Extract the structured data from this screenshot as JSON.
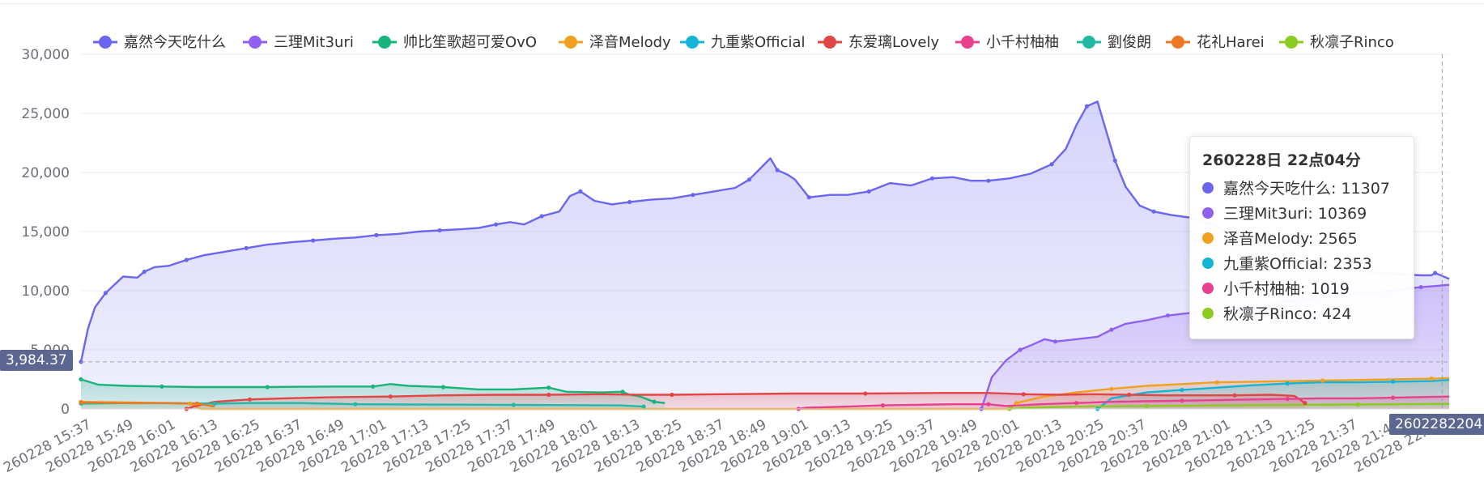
{
  "chart_data": {
    "type": "area",
    "title": "",
    "xlabel": "",
    "ylabel": "",
    "ylim": [
      0,
      30000
    ],
    "y_ticks": [
      "30,000",
      "25,000",
      "20,000",
      "15,000",
      "10,000",
      "5,000",
      "0"
    ],
    "y_tick_values": [
      30000,
      25000,
      20000,
      15000,
      10000,
      5000,
      0
    ],
    "x_ticks": [
      "260228 15:37",
      "260228 15:49",
      "260228 16:01",
      "260228 16:13",
      "260228 16:25",
      "260228 16:37",
      "260228 16:49",
      "260228 17:01",
      "260228 17:13",
      "260228 17:25",
      "260228 17:37",
      "260228 17:49",
      "260228 18:01",
      "260228 18:13",
      "260228 18:25",
      "260228 18:37",
      "260228 18:49",
      "260228 19:01",
      "260228 19:13",
      "260228 19:25",
      "260228 19:37",
      "260228 19:49",
      "260228 20:01",
      "260228 20:13",
      "260228 20:25",
      "260228 20:37",
      "260228 20:49",
      "260228 21:01",
      "260228 21:13",
      "260228 21:25",
      "260228 21:37",
      "260228 21:49",
      "260228 22:01"
    ],
    "x_tick_minutes": [
      937,
      949,
      961,
      973,
      985,
      997,
      1009,
      1021,
      1033,
      1045,
      1057,
      1069,
      1081,
      1093,
      1105,
      1117,
      1129,
      1141,
      1153,
      1165,
      1177,
      1189,
      1201,
      1213,
      1225,
      1237,
      1249,
      1261,
      1273,
      1285,
      1297,
      1309,
      1321
    ],
    "x_range_minutes": [
      937,
      1326
    ],
    "legend_position": "top",
    "grid": true,
    "series": [
      {
        "name": "嘉然今天吃什么",
        "color": "#6b66f0",
        "area": true,
        "points": [
          [
            937,
            3984
          ],
          [
            939,
            6800
          ],
          [
            941,
            8600
          ],
          [
            944,
            9800
          ],
          [
            949,
            11200
          ],
          [
            953,
            11100
          ],
          [
            955,
            11600
          ],
          [
            958,
            12000
          ],
          [
            962,
            12100
          ],
          [
            967,
            12600
          ],
          [
            972,
            13000
          ],
          [
            978,
            13300
          ],
          [
            984,
            13600
          ],
          [
            990,
            13900
          ],
          [
            997,
            14100
          ],
          [
            1003,
            14250
          ],
          [
            1009,
            14400
          ],
          [
            1015,
            14500
          ],
          [
            1021,
            14700
          ],
          [
            1027,
            14800
          ],
          [
            1033,
            15000
          ],
          [
            1039,
            15100
          ],
          [
            1045,
            15200
          ],
          [
            1050,
            15300
          ],
          [
            1055,
            15600
          ],
          [
            1059,
            15800
          ],
          [
            1063,
            15600
          ],
          [
            1068,
            16300
          ],
          [
            1073,
            16700
          ],
          [
            1076,
            18000
          ],
          [
            1079,
            18400
          ],
          [
            1083,
            17600
          ],
          [
            1088,
            17300
          ],
          [
            1093,
            17500
          ],
          [
            1099,
            17700
          ],
          [
            1105,
            17800
          ],
          [
            1111,
            18100
          ],
          [
            1117,
            18400
          ],
          [
            1123,
            18700
          ],
          [
            1127,
            19400
          ],
          [
            1130,
            20300
          ],
          [
            1133,
            21200
          ],
          [
            1135,
            20200
          ],
          [
            1138,
            19800
          ],
          [
            1140,
            19400
          ],
          [
            1144,
            17900
          ],
          [
            1150,
            18100
          ],
          [
            1155,
            18100
          ],
          [
            1161,
            18400
          ],
          [
            1167,
            19100
          ],
          [
            1173,
            18900
          ],
          [
            1179,
            19500
          ],
          [
            1185,
            19600
          ],
          [
            1190,
            19300
          ],
          [
            1195,
            19300
          ],
          [
            1201,
            19500
          ],
          [
            1207,
            19900
          ],
          [
            1213,
            20700
          ],
          [
            1217,
            22000
          ],
          [
            1220,
            24000
          ],
          [
            1223,
            25600
          ],
          [
            1226,
            26000
          ],
          [
            1228,
            24000
          ],
          [
            1231,
            21000
          ],
          [
            1234,
            18800
          ],
          [
            1238,
            17200
          ],
          [
            1242,
            16700
          ],
          [
            1247,
            16400
          ],
          [
            1252,
            16200
          ],
          [
            1258,
            15700
          ],
          [
            1264,
            14800
          ],
          [
            1270,
            14300
          ],
          [
            1276,
            13800
          ],
          [
            1282,
            13100
          ],
          [
            1288,
            12400
          ],
          [
            1294,
            12000
          ],
          [
            1300,
            11700
          ],
          [
            1306,
            11500
          ],
          [
            1312,
            11400
          ],
          [
            1318,
            11300
          ],
          [
            1321,
            11307
          ],
          [
            1322,
            11500
          ],
          [
            1326,
            11000
          ]
        ]
      },
      {
        "name": "三理Mit3uri",
        "color": "#9061f0",
        "area": true,
        "points": [
          [
            1193,
            0
          ],
          [
            1196,
            2700
          ],
          [
            1200,
            4100
          ],
          [
            1204,
            5000
          ],
          [
            1208,
            5500
          ],
          [
            1211,
            5900
          ],
          [
            1214,
            5700
          ],
          [
            1220,
            5900
          ],
          [
            1226,
            6100
          ],
          [
            1230,
            6700
          ],
          [
            1234,
            7200
          ],
          [
            1240,
            7500
          ],
          [
            1246,
            7900
          ],
          [
            1252,
            8100
          ],
          [
            1258,
            8300
          ],
          [
            1264,
            8500
          ],
          [
            1270,
            8700
          ],
          [
            1276,
            8900
          ],
          [
            1282,
            9200
          ],
          [
            1288,
            9400
          ],
          [
            1294,
            9600
          ],
          [
            1300,
            9800
          ],
          [
            1306,
            9900
          ],
          [
            1312,
            10100
          ],
          [
            1318,
            10300
          ],
          [
            1321,
            10369
          ],
          [
            1326,
            10500
          ]
        ]
      },
      {
        "name": "帅比笙歌超可爱OvO",
        "color": "#19b47a",
        "area": true,
        "points": [
          [
            937,
            2500
          ],
          [
            942,
            2050
          ],
          [
            950,
            1950
          ],
          [
            960,
            1900
          ],
          [
            970,
            1850
          ],
          [
            980,
            1850
          ],
          [
            990,
            1850
          ],
          [
            1000,
            1880
          ],
          [
            1010,
            1900
          ],
          [
            1020,
            1900
          ],
          [
            1025,
            2100
          ],
          [
            1030,
            1950
          ],
          [
            1040,
            1850
          ],
          [
            1050,
            1650
          ],
          [
            1060,
            1650
          ],
          [
            1070,
            1800
          ],
          [
            1075,
            1450
          ],
          [
            1085,
            1400
          ],
          [
            1091,
            1450
          ],
          [
            1093,
            1200
          ],
          [
            1096,
            1050
          ],
          [
            1100,
            600
          ],
          [
            1103,
            500
          ]
        ]
      },
      {
        "name": "泽音Melody",
        "color": "#f0a11f",
        "area": true,
        "points": [
          [
            937,
            600
          ],
          [
            950,
            550
          ],
          [
            960,
            500
          ],
          [
            968,
            450
          ],
          [
            971,
            0
          ],
          [
            1201,
            0
          ],
          [
            1203,
            500
          ],
          [
            1210,
            1000
          ],
          [
            1220,
            1400
          ],
          [
            1230,
            1700
          ],
          [
            1240,
            1950
          ],
          [
            1250,
            2100
          ],
          [
            1260,
            2250
          ],
          [
            1270,
            2300
          ],
          [
            1280,
            2350
          ],
          [
            1290,
            2400
          ],
          [
            1300,
            2450
          ],
          [
            1310,
            2500
          ],
          [
            1321,
            2565
          ],
          [
            1326,
            2600
          ]
        ]
      },
      {
        "name": "九重紫Official",
        "color": "#15b4d6",
        "area": true,
        "points": [
          [
            1226,
            0
          ],
          [
            1230,
            900
          ],
          [
            1240,
            1400
          ],
          [
            1250,
            1600
          ],
          [
            1260,
            1800
          ],
          [
            1270,
            2000
          ],
          [
            1280,
            2150
          ],
          [
            1290,
            2250
          ],
          [
            1300,
            2250
          ],
          [
            1310,
            2300
          ],
          [
            1321,
            2353
          ],
          [
            1326,
            2450
          ]
        ]
      },
      {
        "name": "东爱璃Lovely",
        "color": "#e24545",
        "area": true,
        "points": [
          [
            967,
            0
          ],
          [
            969,
            200
          ],
          [
            975,
            600
          ],
          [
            985,
            800
          ],
          [
            995,
            900
          ],
          [
            1010,
            1000
          ],
          [
            1025,
            1050
          ],
          [
            1040,
            1150
          ],
          [
            1055,
            1200
          ],
          [
            1070,
            1200
          ],
          [
            1085,
            1250
          ],
          [
            1095,
            1200
          ],
          [
            1105,
            1200
          ],
          [
            1120,
            1250
          ],
          [
            1140,
            1300
          ],
          [
            1160,
            1300
          ],
          [
            1180,
            1350
          ],
          [
            1195,
            1350
          ],
          [
            1205,
            1250
          ],
          [
            1215,
            1200
          ],
          [
            1225,
            1250
          ],
          [
            1235,
            1200
          ],
          [
            1245,
            1150
          ],
          [
            1255,
            1150
          ],
          [
            1265,
            1150
          ],
          [
            1275,
            1200
          ],
          [
            1282,
            1100
          ],
          [
            1285,
            500
          ]
        ]
      },
      {
        "name": "小千村柚柚",
        "color": "#e8408c",
        "area": true,
        "points": [
          [
            1141,
            0
          ],
          [
            1143,
            100
          ],
          [
            1155,
            200
          ],
          [
            1165,
            300
          ],
          [
            1175,
            350
          ],
          [
            1185,
            400
          ],
          [
            1195,
            400
          ],
          [
            1200,
            250
          ],
          [
            1210,
            400
          ],
          [
            1220,
            500
          ],
          [
            1230,
            600
          ],
          [
            1240,
            650
          ],
          [
            1250,
            700
          ],
          [
            1260,
            750
          ],
          [
            1270,
            800
          ],
          [
            1280,
            850
          ],
          [
            1290,
            900
          ],
          [
            1300,
            900
          ],
          [
            1310,
            950
          ],
          [
            1321,
            1019
          ],
          [
            1326,
            1050
          ]
        ]
      },
      {
        "name": "劉俊朗",
        "color": "#22b8a3",
        "area": true,
        "points": [
          [
            937,
            450
          ],
          [
            950,
            500
          ],
          [
            960,
            500
          ],
          [
            975,
            450
          ],
          [
            985,
            500
          ],
          [
            1000,
            500
          ],
          [
            1015,
            400
          ],
          [
            1030,
            380
          ],
          [
            1045,
            360
          ],
          [
            1060,
            340
          ],
          [
            1075,
            320
          ],
          [
            1090,
            300
          ],
          [
            1097,
            200
          ]
        ]
      },
      {
        "name": "花礼Harei",
        "color": "#f07722",
        "area": false,
        "points": [
          [
            937,
            550
          ],
          [
            950,
            500
          ],
          [
            960,
            500
          ],
          [
            970,
            450
          ],
          [
            975,
            200
          ]
        ]
      },
      {
        "name": "秋凛子Rinco",
        "color": "#8ccb1f",
        "area": true,
        "points": [
          [
            1201,
            0
          ],
          [
            1205,
            100
          ],
          [
            1220,
            200
          ],
          [
            1240,
            250
          ],
          [
            1260,
            300
          ],
          [
            1280,
            350
          ],
          [
            1300,
            380
          ],
          [
            1321,
            424
          ],
          [
            1326,
            430
          ]
        ]
      }
    ],
    "axis_pointer": {
      "y_value_label": "3,984.37",
      "x_value_label": "2602282204",
      "y_value": 3984.37,
      "x_minute": 1324
    },
    "tooltip": {
      "title": "260228日 22点04分",
      "rows": [
        {
          "name": "嘉然今天吃什么",
          "value": "11307",
          "color": "#6b66f0"
        },
        {
          "name": "三理Mit3uri",
          "value": "10369",
          "color": "#9061f0"
        },
        {
          "name": "泽音Melody",
          "value": "2565",
          "color": "#f0a11f"
        },
        {
          "name": "九重紫Official",
          "value": "2353",
          "color": "#15b4d6"
        },
        {
          "name": "小千村柚柚",
          "value": "1019",
          "color": "#e8408c"
        },
        {
          "name": "秋凛子Rinco",
          "value": "424",
          "color": "#8ccb1f"
        }
      ]
    }
  }
}
